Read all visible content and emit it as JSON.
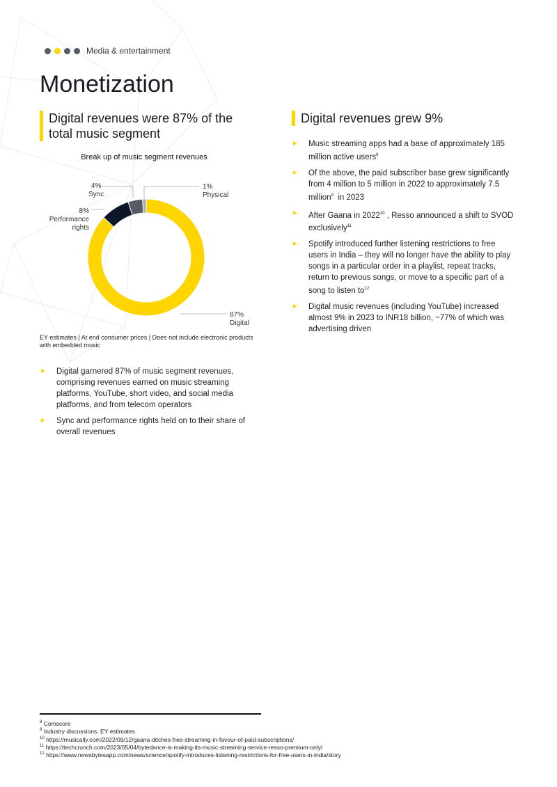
{
  "header": {
    "section": "Media & entertainment",
    "dot_colors": [
      "#565b66",
      "#ffd500",
      "#565b66",
      "#565b66"
    ]
  },
  "title": "Monetization",
  "left": {
    "heading": "Digital revenues were 87% of the total music segment",
    "chart_title": "Break up of music segment revenues",
    "note": "EY estimates | At end consumer prices | Does not include electronic products with embedded music",
    "bullets": [
      "Digital garnered 87% of music segment revenues, comprising revenues earned on music streaming platforms, YouTube, short video, and social media platforms, and from telecom operators",
      "Sync and performance rights held on to their share of overall revenues"
    ]
  },
  "chart_data": {
    "type": "pie",
    "donut": true,
    "title": "Break up of music segment revenues",
    "slices": [
      {
        "label": "Digital",
        "value": 87,
        "text": "87%",
        "color": "#ffd500"
      },
      {
        "label": "Performance rights",
        "value": 8,
        "text": "8%",
        "color": "#0d1628"
      },
      {
        "label": "Sync",
        "value": 4,
        "text": "4%",
        "color": "#565b66"
      },
      {
        "label": "Physical",
        "value": 1,
        "text": "1%",
        "color": "#a7acb4"
      }
    ]
  },
  "right": {
    "heading": "Digital revenues grew 9%",
    "bullets": [
      {
        "text": "Music streaming apps had a base of approximately 185 million active users",
        "sup": "8"
      },
      {
        "text": "Of the above, the paid subscriber base grew significantly from 4 million to 5 million in 2022 to approximately 7.5 million",
        "sup": "9",
        "after": "  in 2023"
      },
      {
        "text": "After Gaana in 2022",
        "sup": "10",
        "after": " , Resso announced a shift to SVOD exclusively",
        "sup2": "11"
      },
      {
        "text": "Spotify introduced further listening restrictions to free users in India – they will no longer have the ability to play songs in a particular order in a playlist, repeat tracks, return to previous songs, or move to a specific part of a song to listen to",
        "sup": "12"
      },
      {
        "text": "Digital music revenues (including YouTube) increased almost 9% in 2023 to INR18 billion, ~77% of which was advertising driven"
      }
    ]
  },
  "footnotes": [
    {
      "n": "8",
      "text": "Comscore"
    },
    {
      "n": "9",
      "text": "Industry discussions, EY estimates"
    },
    {
      "n": "10",
      "text": "https://musically.com/2022/09/12/gaana-ditches-free-streaming-in-favour-of-paid-subscriptions/"
    },
    {
      "n": "11",
      "text": "https://techcrunch.com/2023/05/04/bytedance-is-making-its-music-streaming-service-resso-premium-only/"
    },
    {
      "n": "12",
      "text": "https://www.newsbytesapp.com/news/science/spotify-introduces-listening-restrictions-for-free-users-in-india/story"
    }
  ]
}
